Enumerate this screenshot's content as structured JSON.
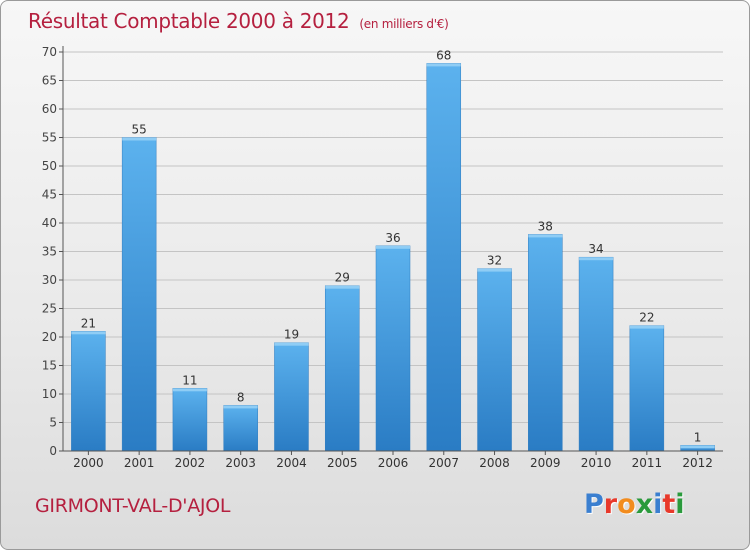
{
  "header": {
    "title": "Résultat Comptable 2000 à 2012",
    "subtitle": "(en milliers d'€)"
  },
  "footer": {
    "town": "GIRMONT-VAL-D'AJOL",
    "logo_letters": [
      "P",
      "r",
      "o",
      "x",
      "i",
      "t",
      "i"
    ],
    "logo_colors": [
      "#3a7fd0",
      "#e8392b",
      "#f28c1e",
      "#2a9a3c",
      "#3a7fd0",
      "#e8392b",
      "#2a9a3c"
    ]
  },
  "chart_data": {
    "type": "bar",
    "title": "Résultat Comptable 2000 à 2012",
    "subtitle": "(en milliers d'€)",
    "categories": [
      "2000",
      "2001",
      "2002",
      "2003",
      "2004",
      "2005",
      "2006",
      "2007",
      "2008",
      "2009",
      "2010",
      "2011",
      "2012"
    ],
    "values": [
      21,
      55,
      11,
      8,
      19,
      29,
      36,
      68,
      32,
      38,
      34,
      22,
      1
    ],
    "ylim": [
      0,
      70
    ],
    "yticks": [
      0,
      5,
      10,
      15,
      20,
      25,
      30,
      35,
      40,
      45,
      50,
      55,
      60,
      65,
      70
    ],
    "grid": true,
    "bar_color": "#3a8fd6",
    "bar_color_light": "#5aaee8"
  }
}
